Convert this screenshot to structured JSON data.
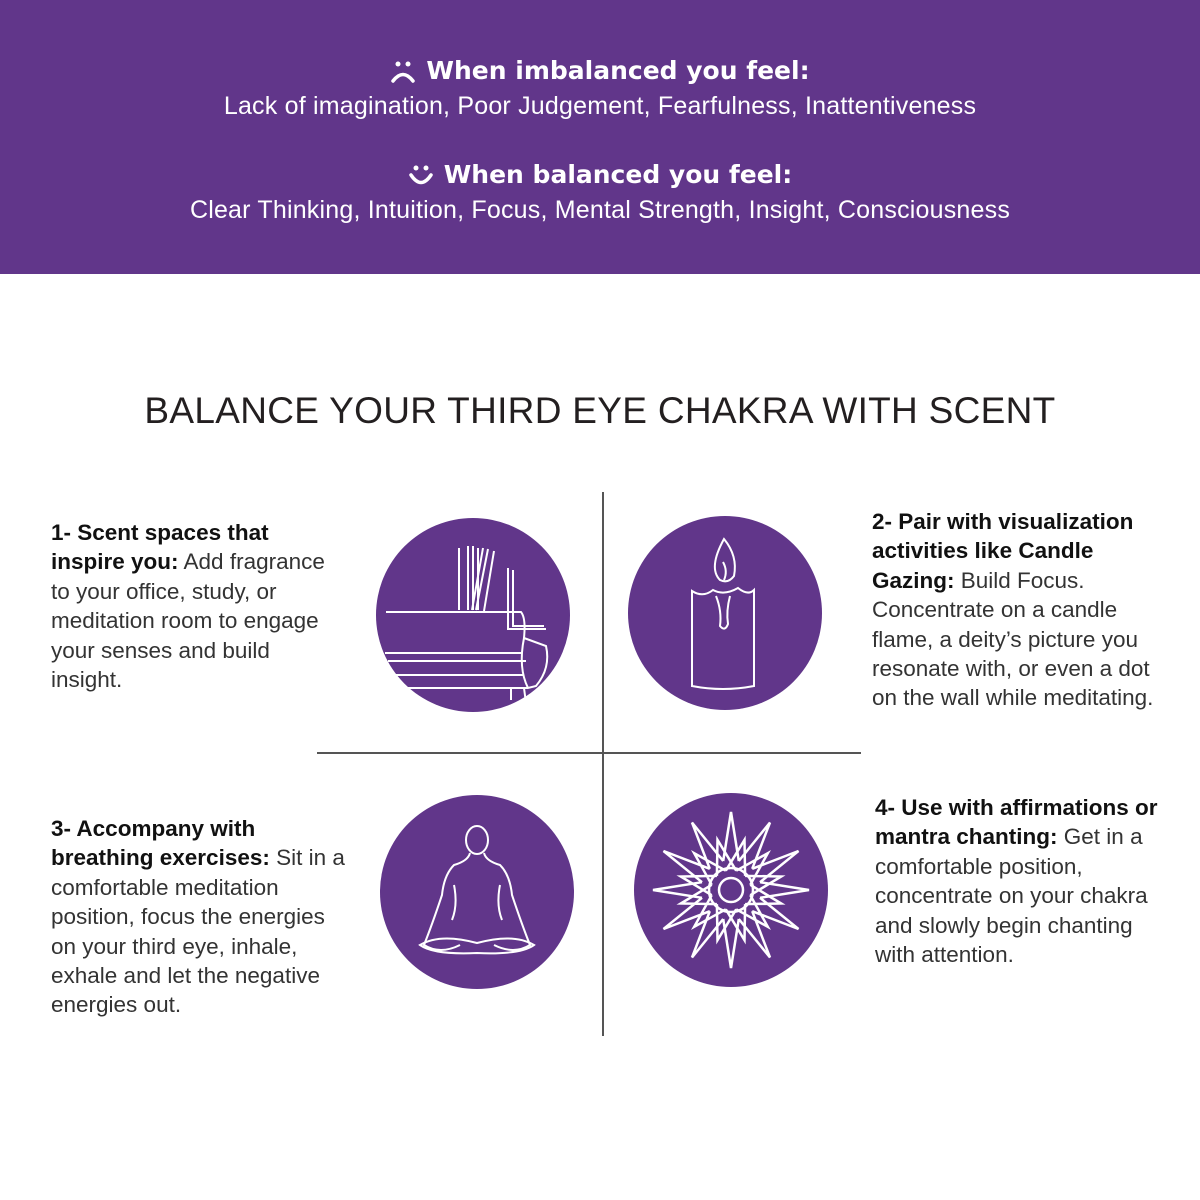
{
  "banner": {
    "imbalanced_heading": "When imbalanced you feel:",
    "imbalanced_text": "Lack of imagination, Poor Judgement, Fearfulness, Inattentiveness",
    "imbalanced_icon": "sad-face-icon",
    "balanced_heading": "When balanced you feel:",
    "balanced_text": "Clear Thinking, Intuition, Focus, Mental Strength, Insight, Consciousness",
    "balanced_icon": "happy-face-icon",
    "background_color": "#61368a"
  },
  "title": "BALANCE YOUR THIRD EYE CHAKRA WITH SCENT",
  "tips": [
    {
      "bold": "1- Scent spaces that inspire you:",
      "text": " Add fragrance to your office, study, or meditation room to engage your senses and build insight.",
      "icon": "sofa-room-icon"
    },
    {
      "bold": "2- Pair with visualization activities like Candle Gazing:",
      "text": " Build Focus. Concentrate on a candle flame, a deity’s picture you resonate with, or even a dot on the wall while meditating.",
      "icon": "candle-icon"
    },
    {
      "bold": "3- Accompany with breathing exercises:",
      "text": " Sit in a comfortable meditation position, focus the energies on your third eye, inhale, exhale and let the negative energies out.",
      "icon": "meditation-pose-icon"
    },
    {
      "bold": "4- Use with affirmations or mantra chanting:",
      "text": " Get in a comfortable position, concentrate on your chakra and slowly begin chanting with attention.",
      "icon": "lotus-mandala-icon"
    }
  ]
}
